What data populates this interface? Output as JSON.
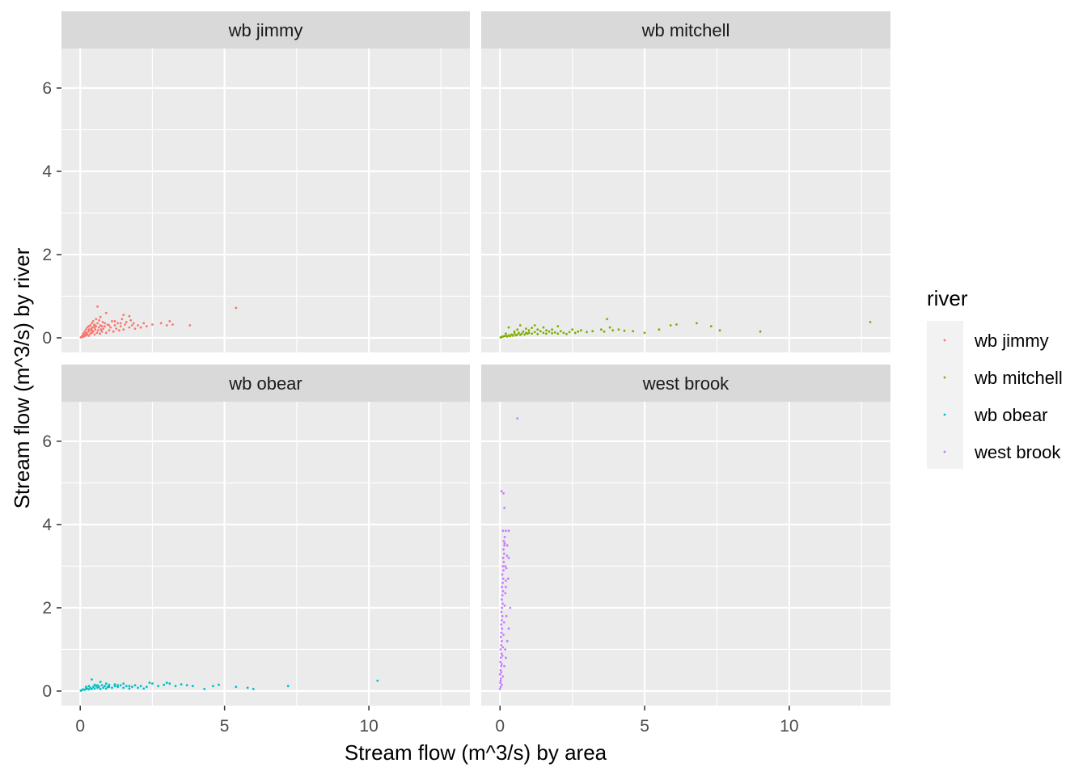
{
  "chart_data": {
    "type": "scatter",
    "facet": "river",
    "xlabel": "Stream flow (m^3/s) by area",
    "ylabel": "Stream flow (m^3/s) by river",
    "xlim": [
      -0.65,
      13.5
    ],
    "ylim": [
      -0.35,
      6.95
    ],
    "x_ticks": [
      0,
      5,
      10
    ],
    "y_ticks": [
      0,
      2,
      4,
      6
    ],
    "grid": true,
    "legend": {
      "title": "river",
      "placement": "right",
      "entries": [
        {
          "name": "wb jimmy",
          "color": "#F8766D"
        },
        {
          "name": "wb mitchell",
          "color": "#7CAE00"
        },
        {
          "name": "wb obear",
          "color": "#00BFC4"
        },
        {
          "name": "west brook",
          "color": "#C77CFF"
        }
      ]
    },
    "panels": [
      {
        "name": "wb jimmy",
        "color": "#F8766D",
        "points": [
          [
            0.02,
            0.01
          ],
          [
            0.05,
            0.03
          ],
          [
            0.08,
            0.05
          ],
          [
            0.1,
            0.02
          ],
          [
            0.12,
            0.08
          ],
          [
            0.15,
            0.04
          ],
          [
            0.18,
            0.1
          ],
          [
            0.2,
            0.06
          ],
          [
            0.22,
            0.12
          ],
          [
            0.25,
            0.08
          ],
          [
            0.28,
            0.15
          ],
          [
            0.3,
            0.05
          ],
          [
            0.32,
            0.18
          ],
          [
            0.35,
            0.1
          ],
          [
            0.38,
            0.22
          ],
          [
            0.4,
            0.12
          ],
          [
            0.42,
            0.25
          ],
          [
            0.45,
            0.15
          ],
          [
            0.48,
            0.3
          ],
          [
            0.5,
            0.08
          ],
          [
            0.52,
            0.2
          ],
          [
            0.55,
            0.28
          ],
          [
            0.58,
            0.12
          ],
          [
            0.6,
            0.35
          ],
          [
            0.62,
            0.18
          ],
          [
            0.65,
            0.25
          ],
          [
            0.68,
            0.1
          ],
          [
            0.7,
            0.3
          ],
          [
            0.72,
            0.2
          ],
          [
            0.75,
            0.15
          ],
          [
            0.78,
            0.38
          ],
          [
            0.8,
            0.22
          ],
          [
            0.85,
            0.28
          ],
          [
            0.9,
            0.12
          ],
          [
            0.95,
            0.32
          ],
          [
            1.0,
            0.18
          ],
          [
            1.05,
            0.25
          ],
          [
            1.1,
            0.4
          ],
          [
            1.15,
            0.15
          ],
          [
            1.2,
            0.3
          ],
          [
            1.25,
            0.22
          ],
          [
            1.3,
            0.35
          ],
          [
            1.35,
            0.18
          ],
          [
            1.4,
            0.28
          ],
          [
            1.45,
            0.45
          ],
          [
            1.5,
            0.2
          ],
          [
            1.55,
            0.32
          ],
          [
            1.6,
            0.38
          ],
          [
            1.7,
            0.25
          ],
          [
            1.75,
            0.42
          ],
          [
            1.8,
            0.3
          ],
          [
            1.85,
            0.35
          ],
          [
            1.9,
            0.22
          ],
          [
            2.0,
            0.3
          ],
          [
            2.1,
            0.25
          ],
          [
            2.2,
            0.35
          ],
          [
            2.3,
            0.28
          ],
          [
            2.5,
            0.32
          ],
          [
            2.8,
            0.35
          ],
          [
            3.0,
            0.3
          ],
          [
            3.1,
            0.4
          ],
          [
            3.2,
            0.32
          ],
          [
            3.8,
            0.3
          ],
          [
            5.4,
            0.72
          ],
          [
            0.6,
            0.75
          ],
          [
            0.9,
            0.6
          ],
          [
            1.5,
            0.55
          ],
          [
            1.7,
            0.52
          ],
          [
            0.3,
            0.28
          ],
          [
            0.4,
            0.35
          ],
          [
            0.55,
            0.45
          ],
          [
            0.7,
            0.5
          ],
          [
            0.2,
            0.2
          ],
          [
            0.25,
            0.25
          ],
          [
            0.35,
            0.3
          ],
          [
            0.45,
            0.4
          ],
          [
            0.5,
            0.32
          ],
          [
            0.65,
            0.42
          ],
          [
            0.75,
            0.28
          ],
          [
            0.85,
            0.35
          ],
          [
            1.0,
            0.3
          ],
          [
            1.2,
            0.4
          ],
          [
            1.4,
            0.35
          ],
          [
            0.1,
            0.1
          ],
          [
            0.15,
            0.15
          ],
          [
            0.3,
            0.2
          ],
          [
            0.4,
            0.18
          ],
          [
            0.5,
            0.25
          ]
        ]
      },
      {
        "name": "wb mitchell",
        "color": "#7CAE00",
        "points": [
          [
            0.02,
            0.01
          ],
          [
            0.05,
            0.02
          ],
          [
            0.1,
            0.03
          ],
          [
            0.15,
            0.04
          ],
          [
            0.2,
            0.05
          ],
          [
            0.25,
            0.03
          ],
          [
            0.3,
            0.06
          ],
          [
            0.35,
            0.04
          ],
          [
            0.4,
            0.08
          ],
          [
            0.45,
            0.05
          ],
          [
            0.5,
            0.1
          ],
          [
            0.55,
            0.06
          ],
          [
            0.6,
            0.08
          ],
          [
            0.65,
            0.12
          ],
          [
            0.7,
            0.07
          ],
          [
            0.75,
            0.1
          ],
          [
            0.8,
            0.15
          ],
          [
            0.85,
            0.08
          ],
          [
            0.9,
            0.12
          ],
          [
            0.95,
            0.1
          ],
          [
            1.0,
            0.18
          ],
          [
            1.1,
            0.1
          ],
          [
            1.2,
            0.14
          ],
          [
            1.3,
            0.09
          ],
          [
            1.4,
            0.16
          ],
          [
            1.5,
            0.12
          ],
          [
            1.6,
            0.1
          ],
          [
            1.7,
            0.15
          ],
          [
            1.8,
            0.11
          ],
          [
            1.9,
            0.13
          ],
          [
            2.0,
            0.1
          ],
          [
            2.1,
            0.16
          ],
          [
            2.2,
            0.12
          ],
          [
            2.3,
            0.09
          ],
          [
            2.4,
            0.14
          ],
          [
            2.5,
            0.2
          ],
          [
            2.6,
            0.12
          ],
          [
            2.7,
            0.15
          ],
          [
            2.8,
            0.18
          ],
          [
            3.0,
            0.14
          ],
          [
            3.2,
            0.16
          ],
          [
            3.5,
            0.2
          ],
          [
            3.6,
            0.15
          ],
          [
            3.8,
            0.25
          ],
          [
            3.9,
            0.18
          ],
          [
            4.1,
            0.2
          ],
          [
            4.3,
            0.17
          ],
          [
            4.6,
            0.16
          ],
          [
            5.0,
            0.12
          ],
          [
            5.5,
            0.2
          ],
          [
            5.9,
            0.3
          ],
          [
            6.1,
            0.32
          ],
          [
            6.8,
            0.35
          ],
          [
            7.3,
            0.28
          ],
          [
            7.6,
            0.18
          ],
          [
            9.0,
            0.15
          ],
          [
            12.8,
            0.38
          ],
          [
            0.3,
            0.25
          ],
          [
            0.7,
            0.3
          ],
          [
            1.2,
            0.3
          ],
          [
            1.5,
            0.25
          ],
          [
            2.0,
            0.28
          ],
          [
            3.7,
            0.45
          ],
          [
            0.5,
            0.15
          ],
          [
            1.0,
            0.12
          ],
          [
            1.3,
            0.2
          ],
          [
            1.6,
            0.18
          ],
          [
            0.2,
            0.1
          ],
          [
            0.6,
            0.2
          ],
          [
            0.9,
            0.22
          ],
          [
            1.1,
            0.24
          ],
          [
            1.8,
            0.2
          ]
        ]
      },
      {
        "name": "wb obear",
        "color": "#00BFC4",
        "points": [
          [
            0.02,
            0.01
          ],
          [
            0.05,
            0.02
          ],
          [
            0.1,
            0.04
          ],
          [
            0.15,
            0.03
          ],
          [
            0.2,
            0.05
          ],
          [
            0.25,
            0.06
          ],
          [
            0.3,
            0.04
          ],
          [
            0.35,
            0.08
          ],
          [
            0.4,
            0.05
          ],
          [
            0.45,
            0.1
          ],
          [
            0.5,
            0.06
          ],
          [
            0.55,
            0.12
          ],
          [
            0.6,
            0.08
          ],
          [
            0.65,
            0.1
          ],
          [
            0.7,
            0.05
          ],
          [
            0.75,
            0.14
          ],
          [
            0.8,
            0.08
          ],
          [
            0.85,
            0.12
          ],
          [
            0.9,
            0.06
          ],
          [
            0.95,
            0.1
          ],
          [
            1.0,
            0.15
          ],
          [
            1.1,
            0.08
          ],
          [
            1.2,
            0.12
          ],
          [
            1.3,
            0.1
          ],
          [
            1.4,
            0.14
          ],
          [
            1.5,
            0.08
          ],
          [
            1.6,
            0.12
          ],
          [
            1.7,
            0.06
          ],
          [
            1.8,
            0.1
          ],
          [
            1.9,
            0.14
          ],
          [
            2.0,
            0.08
          ],
          [
            2.1,
            0.12
          ],
          [
            2.2,
            0.06
          ],
          [
            2.3,
            0.1
          ],
          [
            2.5,
            0.18
          ],
          [
            2.7,
            0.12
          ],
          [
            2.9,
            0.15
          ],
          [
            3.1,
            0.18
          ],
          [
            3.3,
            0.12
          ],
          [
            3.5,
            0.16
          ],
          [
            3.7,
            0.14
          ],
          [
            3.9,
            0.12
          ],
          [
            4.3,
            0.05
          ],
          [
            4.6,
            0.12
          ],
          [
            4.8,
            0.15
          ],
          [
            5.4,
            0.1
          ],
          [
            5.8,
            0.08
          ],
          [
            6.0,
            0.05
          ],
          [
            7.2,
            0.12
          ],
          [
            10.3,
            0.25
          ],
          [
            0.4,
            0.28
          ],
          [
            0.7,
            0.22
          ],
          [
            1.5,
            0.18
          ],
          [
            2.4,
            0.2
          ],
          [
            3.0,
            0.2
          ],
          [
            0.3,
            0.12
          ],
          [
            0.5,
            0.15
          ],
          [
            0.9,
            0.18
          ],
          [
            1.2,
            0.16
          ],
          [
            0.2,
            0.1
          ],
          [
            0.6,
            0.14
          ],
          [
            1.0,
            0.1
          ],
          [
            1.3,
            0.14
          ],
          [
            1.7,
            0.12
          ]
        ]
      },
      {
        "name": "west brook",
        "color": "#C77CFF",
        "points": [
          [
            0.0,
            0.05
          ],
          [
            0.02,
            0.1
          ],
          [
            0.01,
            0.2
          ],
          [
            0.03,
            0.3
          ],
          [
            0.0,
            0.4
          ],
          [
            0.02,
            0.5
          ],
          [
            0.04,
            0.6
          ],
          [
            0.01,
            0.7
          ],
          [
            0.03,
            0.8
          ],
          [
            0.05,
            0.9
          ],
          [
            0.02,
            1.0
          ],
          [
            0.04,
            1.1
          ],
          [
            0.06,
            1.2
          ],
          [
            0.03,
            1.3
          ],
          [
            0.05,
            1.4
          ],
          [
            0.07,
            1.5
          ],
          [
            0.04,
            1.6
          ],
          [
            0.06,
            1.7
          ],
          [
            0.08,
            1.8
          ],
          [
            0.05,
            1.9
          ],
          [
            0.07,
            2.0
          ],
          [
            0.09,
            2.1
          ],
          [
            0.06,
            2.2
          ],
          [
            0.08,
            2.3
          ],
          [
            0.1,
            2.4
          ],
          [
            0.07,
            2.5
          ],
          [
            0.09,
            2.6
          ],
          [
            0.11,
            2.7
          ],
          [
            0.08,
            2.8
          ],
          [
            0.12,
            2.9
          ],
          [
            0.1,
            3.0
          ],
          [
            0.13,
            3.1
          ],
          [
            0.11,
            3.2
          ],
          [
            0.14,
            3.3
          ],
          [
            0.12,
            3.4
          ],
          [
            0.15,
            3.5
          ],
          [
            0.13,
            3.6
          ],
          [
            0.16,
            3.7
          ],
          [
            0.1,
            3.85
          ],
          [
            0.2,
            3.85
          ],
          [
            0.3,
            3.85
          ],
          [
            0.25,
            3.5
          ],
          [
            0.3,
            3.2
          ],
          [
            0.28,
            2.7
          ],
          [
            0.35,
            2.0
          ],
          [
            0.3,
            1.5
          ],
          [
            0.25,
            1.2
          ],
          [
            0.2,
            0.8
          ],
          [
            0.1,
            0.35
          ],
          [
            0.15,
            0.6
          ],
          [
            0.18,
            1.0
          ],
          [
            0.22,
            1.8
          ],
          [
            0.2,
            2.5
          ],
          [
            0.18,
            3.0
          ],
          [
            0.05,
            4.8
          ],
          [
            0.12,
            4.75
          ],
          [
            0.15,
            4.4
          ],
          [
            0.6,
            6.55
          ],
          [
            0.02,
            0.25
          ],
          [
            0.04,
            0.45
          ],
          [
            0.06,
            0.65
          ],
          [
            0.08,
            0.85
          ],
          [
            0.1,
            1.05
          ],
          [
            0.12,
            1.35
          ],
          [
            0.14,
            1.65
          ],
          [
            0.16,
            2.05
          ],
          [
            0.18,
            2.35
          ],
          [
            0.2,
            2.65
          ],
          [
            0.22,
            2.95
          ],
          [
            0.24,
            3.25
          ],
          [
            0.16,
            3.55
          ],
          [
            0.06,
            0.15
          ]
        ]
      }
    ]
  }
}
